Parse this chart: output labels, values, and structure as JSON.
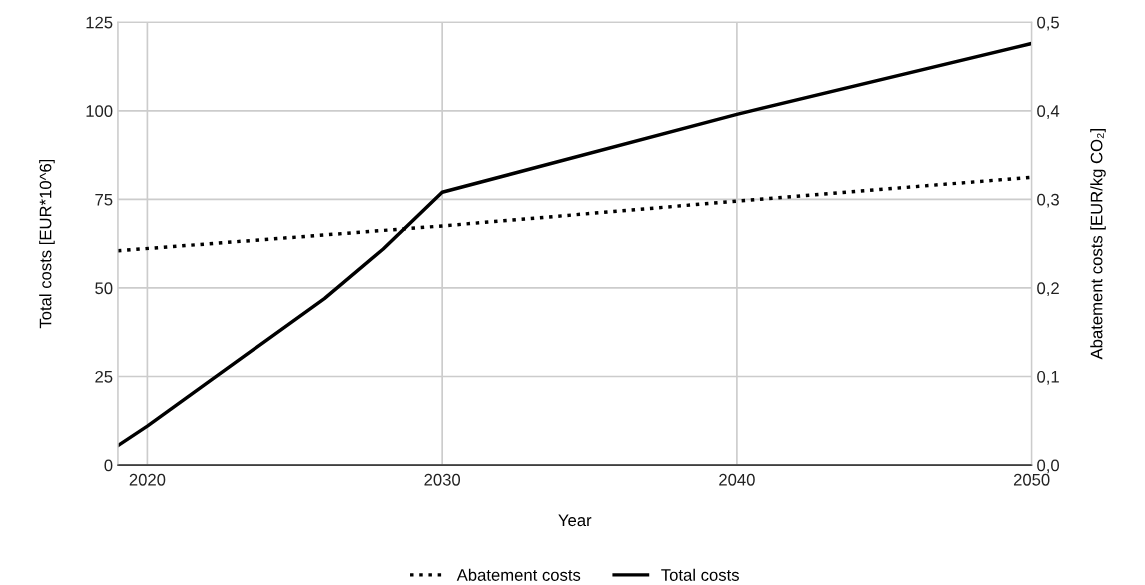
{
  "chart_data": {
    "type": "line",
    "xlabel": "Year",
    "ylabel": "Total costs [EUR*10^6]",
    "y2label": "Abatement costs [EUR/kg CO₂]",
    "xlim": [
      2019,
      2050
    ],
    "xticks": [
      2020,
      2030,
      2040,
      2050
    ],
    "ylim": [
      0,
      125
    ],
    "yticks": [
      0,
      25,
      50,
      75,
      100,
      125
    ],
    "y2lim": [
      0,
      0.5
    ],
    "y2ticks": [
      {
        "value": 0,
        "label": "0,0"
      },
      {
        "value": 0.1,
        "label": "0,1"
      },
      {
        "value": 0.2,
        "label": "0,2"
      },
      {
        "value": 0.3,
        "label": "0,3"
      },
      {
        "value": 0.4,
        "label": "0,4"
      },
      {
        "value": 0.5,
        "label": "0,5"
      }
    ],
    "grid": true,
    "legend": "bottom",
    "series": [
      {
        "name": "Abatement costs",
        "color": "#000000",
        "axis": "y2",
        "line_style": "dotted",
        "x": [
          2019,
          2030,
          2040,
          2050
        ],
        "values": [
          0.242,
          0.27,
          0.298,
          0.325
        ]
      },
      {
        "name": "Total costs",
        "color": "#000000",
        "line_style": "solid",
        "x": [
          2019,
          2020,
          2022,
          2026,
          2028,
          2030,
          2040,
          2050
        ],
        "values": [
          5.5,
          11,
          23,
          47,
          61,
          77,
          99,
          119
        ]
      }
    ]
  }
}
